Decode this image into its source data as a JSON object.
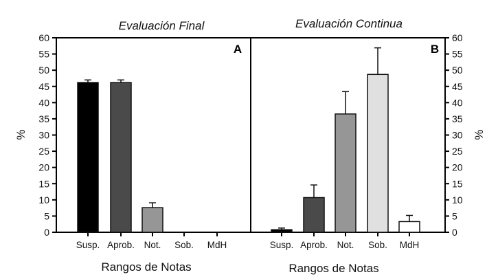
{
  "chart_data": {
    "type": "bar",
    "ylabel": "%",
    "ylim": [
      0,
      60
    ],
    "yticks": [
      "0",
      "5",
      "10",
      "15",
      "20",
      "25",
      "30",
      "35",
      "40",
      "45",
      "50",
      "55",
      "60"
    ],
    "grid": false,
    "panels": [
      {
        "letter": "A",
        "title": "Evaluación Final",
        "xlabel": "Rangos de Notas",
        "categories": [
          "Susp.",
          "Aprob.",
          "Not.",
          "Sob.",
          "MdH"
        ],
        "values": [
          46.2,
          46.2,
          7.6,
          0,
          0
        ],
        "error_upper": [
          47.0,
          47.0,
          9.1,
          null,
          null
        ],
        "colors": [
          "#000000",
          "#4a4a4a",
          "#969696",
          "#e0e0e0",
          "#ffffff"
        ],
        "y_axis_side": "left"
      },
      {
        "letter": "B",
        "title": "Evaluación Continua",
        "xlabel": "Rangos de Notas",
        "categories": [
          "Susp.",
          "Aprob.",
          "Not.",
          "Sob.",
          "MdH"
        ],
        "values": [
          0.8,
          10.7,
          36.5,
          48.7,
          3.3
        ],
        "error_upper": [
          1.3,
          14.6,
          43.4,
          56.9,
          5.2
        ],
        "colors": [
          "#000000",
          "#4a4a4a",
          "#969696",
          "#e0e0e0",
          "#ffffff"
        ],
        "y_axis_side": "right"
      }
    ]
  }
}
